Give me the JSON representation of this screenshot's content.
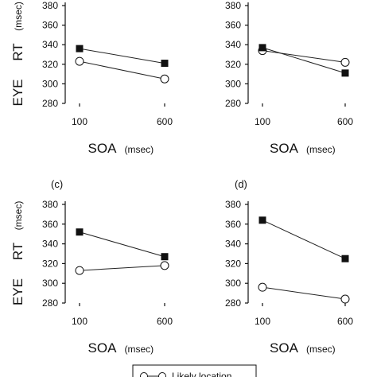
{
  "chart_data": [
    {
      "panel_label": "",
      "type": "line",
      "x": [
        100,
        600
      ],
      "xtick_labels": [
        "100",
        "600"
      ],
      "ylim": [
        280,
        380
      ],
      "ytick_labels": [
        "280",
        "300",
        "320",
        "340",
        "360",
        "380"
      ],
      "xlabel_main": "SOA",
      "xlabel_unit": "(msec)",
      "ylabel_main": "EYE",
      "ylabel_rt": "RT",
      "ylabel_unit": "(msec)",
      "series": [
        {
          "marker": "filled-square",
          "values": [
            336,
            321
          ]
        },
        {
          "marker": "open-circle",
          "values": [
            323,
            305
          ]
        }
      ]
    },
    {
      "panel_label": "",
      "type": "line",
      "x": [
        100,
        600
      ],
      "xtick_labels": [
        "100",
        "600"
      ],
      "ylim": [
        280,
        380
      ],
      "ytick_labels": [
        "280",
        "300",
        "320",
        "340",
        "360",
        "380"
      ],
      "xlabel_main": "SOA",
      "xlabel_unit": "(msec)",
      "ylabel_main": "",
      "ylabel_rt": "",
      "ylabel_unit": "",
      "series": [
        {
          "marker": "filled-square",
          "values": [
            337,
            311
          ]
        },
        {
          "marker": "open-circle",
          "values": [
            334,
            322
          ]
        }
      ]
    },
    {
      "panel_label": "(c)",
      "type": "line",
      "x": [
        100,
        600
      ],
      "xtick_labels": [
        "100",
        "600"
      ],
      "ylim": [
        280,
        380
      ],
      "ytick_labels": [
        "280",
        "300",
        "320",
        "340",
        "360",
        "380"
      ],
      "xlabel_main": "SOA",
      "xlabel_unit": "(msec)",
      "ylabel_main": "EYE",
      "ylabel_rt": "RT",
      "ylabel_unit": "(msec)",
      "series": [
        {
          "marker": "filled-square",
          "values": [
            352,
            327
          ]
        },
        {
          "marker": "open-circle",
          "values": [
            313,
            318
          ]
        }
      ]
    },
    {
      "panel_label": "(d)",
      "type": "line",
      "x": [
        100,
        600
      ],
      "xtick_labels": [
        "100",
        "600"
      ],
      "ylim": [
        280,
        380
      ],
      "ytick_labels": [
        "280",
        "300",
        "320",
        "340",
        "360",
        "380"
      ],
      "xlabel_main": "SOA",
      "xlabel_unit": "(msec)",
      "ylabel_main": "",
      "ylabel_rt": "",
      "ylabel_unit": "",
      "series": [
        {
          "marker": "filled-square",
          "values": [
            364,
            325
          ]
        },
        {
          "marker": "open-circle",
          "values": [
            296,
            284
          ]
        }
      ]
    }
  ],
  "legend": {
    "entry_label": "Likely location"
  }
}
